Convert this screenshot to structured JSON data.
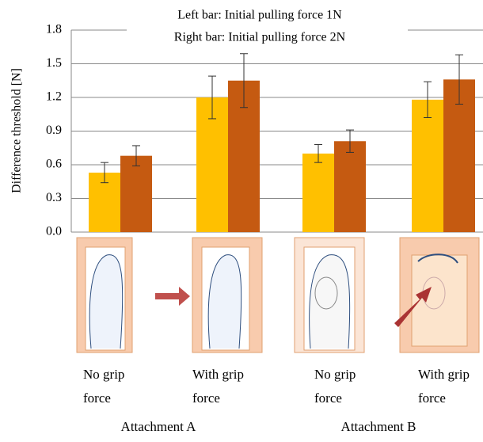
{
  "chart_data": {
    "type": "bar",
    "legend_lines": [
      "Left bar: Initial pulling force 1N",
      "Right bar: Initial pulling force 2N"
    ],
    "y_label": "Difference threshold [N]",
    "categories": [
      "No grip force",
      "With grip force",
      "No grip force",
      "With grip force"
    ],
    "groups": [
      "Attachment A",
      "Attachment B"
    ],
    "series": [
      {
        "name": "Initial pulling force 1N",
        "color": "#ffc000",
        "values": [
          0.53,
          1.2,
          0.7,
          1.18
        ],
        "errors": [
          0.09,
          0.19,
          0.08,
          0.16
        ]
      },
      {
        "name": "Initial pulling force 2N",
        "color": "#c55a11",
        "values": [
          0.68,
          1.35,
          0.81,
          1.36
        ],
        "errors": [
          0.09,
          0.24,
          0.1,
          0.22
        ]
      }
    ],
    "ylim": [
      0,
      1.8
    ],
    "yticks": [
      {
        "value": 0,
        "label": "0.0"
      },
      0.3,
      0.6,
      0.9,
      1.2,
      1.5,
      1.8
    ],
    "grid": true
  }
}
